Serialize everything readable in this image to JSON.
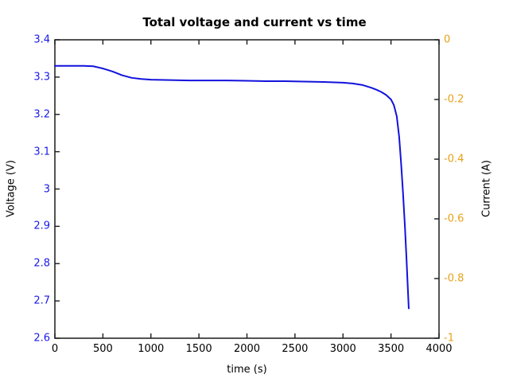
{
  "figure": {
    "background": "#ffffff"
  },
  "chart_data": {
    "type": "line",
    "title": "Total voltage and current vs time",
    "xlabel": "time (s)",
    "ylabel_left": "Voltage (V)",
    "ylabel_right": "Current (A)",
    "x_range": [
      0,
      4000
    ],
    "y_left_range": [
      2.6,
      3.4
    ],
    "y_right_range": [
      -1,
      0
    ],
    "x_ticks": [
      0,
      500,
      1000,
      1500,
      2000,
      2500,
      3000,
      3500,
      4000
    ],
    "y_left_ticks": [
      3.4,
      3.3,
      3.2,
      3.1,
      3,
      2.9,
      2.8,
      2.7,
      2.6
    ],
    "y_right_ticks": [
      0,
      -0.2,
      -0.4,
      -0.6,
      -0.8,
      -1
    ],
    "grid": false,
    "legend": "none",
    "colors": {
      "axis": "#1a1a1a",
      "left_axis_labels": "#1a1ae6",
      "right_axis_labels": "#e6a117",
      "title": "#000000"
    },
    "series": [
      {
        "name": "Total voltage",
        "axis": "left",
        "color": "#1212dd",
        "x": [
          0,
          150,
          300,
          400,
          500,
          600,
          700,
          800,
          900,
          1000,
          1200,
          1400,
          1600,
          1800,
          2000,
          2200,
          2400,
          2600,
          2800,
          3000,
          3100,
          3200,
          3300,
          3350,
          3400,
          3450,
          3500,
          3530,
          3560,
          3585,
          3605,
          3625,
          3645,
          3662,
          3675,
          3685
        ],
        "y": [
          3.33,
          3.33,
          3.33,
          3.329,
          3.323,
          3.315,
          3.305,
          3.298,
          3.295,
          3.293,
          3.292,
          3.291,
          3.291,
          3.291,
          3.29,
          3.289,
          3.289,
          3.288,
          3.287,
          3.285,
          3.283,
          3.279,
          3.271,
          3.266,
          3.26,
          3.252,
          3.24,
          3.225,
          3.195,
          3.14,
          3.07,
          2.99,
          2.9,
          2.81,
          2.735,
          2.68
        ]
      }
    ]
  }
}
